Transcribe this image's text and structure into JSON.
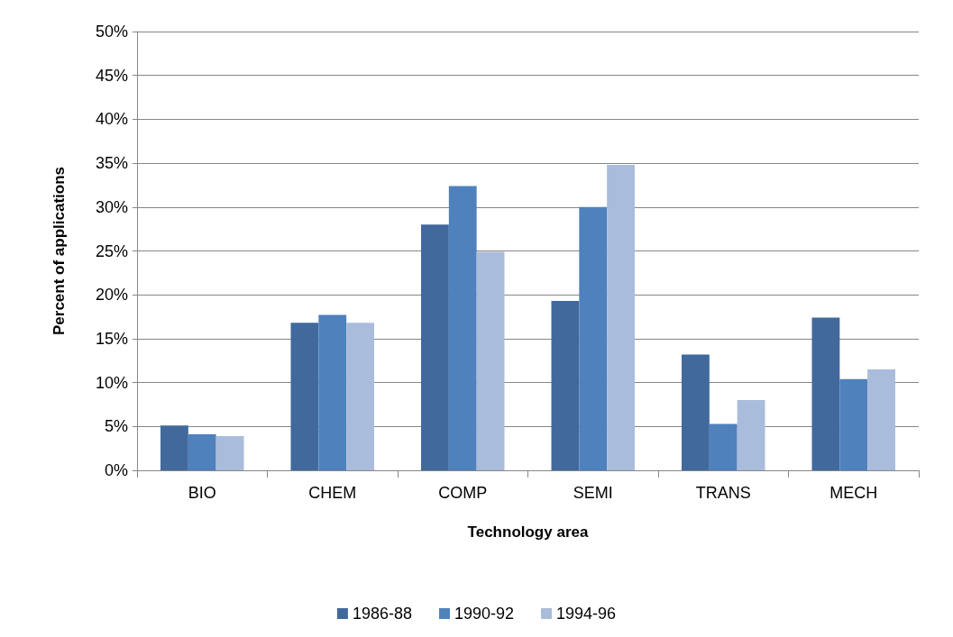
{
  "chart_data": {
    "type": "bar",
    "xlabel": "Technology area",
    "ylabel": "Percent of applications",
    "categories": [
      "BIO",
      "CHEM",
      "COMP",
      "SEMI",
      "TRANS",
      "MECH"
    ],
    "series": [
      {
        "name": "1986-88",
        "color": "#41699c",
        "values": [
          5.1,
          16.8,
          28.0,
          19.3,
          13.2,
          17.4
        ]
      },
      {
        "name": "1990-92",
        "color": "#4f81bd",
        "values": [
          4.1,
          17.7,
          32.4,
          30.0,
          5.3,
          10.4
        ]
      },
      {
        "name": "1994-96",
        "color": "#a9bcdc",
        "values": [
          3.9,
          16.8,
          24.9,
          34.8,
          8.0,
          11.5
        ]
      }
    ],
    "ylim": [
      0,
      50
    ],
    "yticks": [
      {
        "value": 0,
        "label": "0%"
      },
      {
        "value": 5,
        "label": "5%"
      },
      {
        "value": 10,
        "label": "10%"
      },
      {
        "value": 15,
        "label": "15%"
      },
      {
        "value": 20,
        "label": "20%"
      },
      {
        "value": 25,
        "label": "25%"
      },
      {
        "value": 30,
        "label": "30%"
      },
      {
        "value": 35,
        "label": "35%"
      },
      {
        "value": 40,
        "label": "40%"
      },
      {
        "value": 45,
        "label": "45%"
      },
      {
        "value": 50,
        "label": "50%"
      }
    ],
    "grid": "y",
    "legend": "bottom"
  }
}
